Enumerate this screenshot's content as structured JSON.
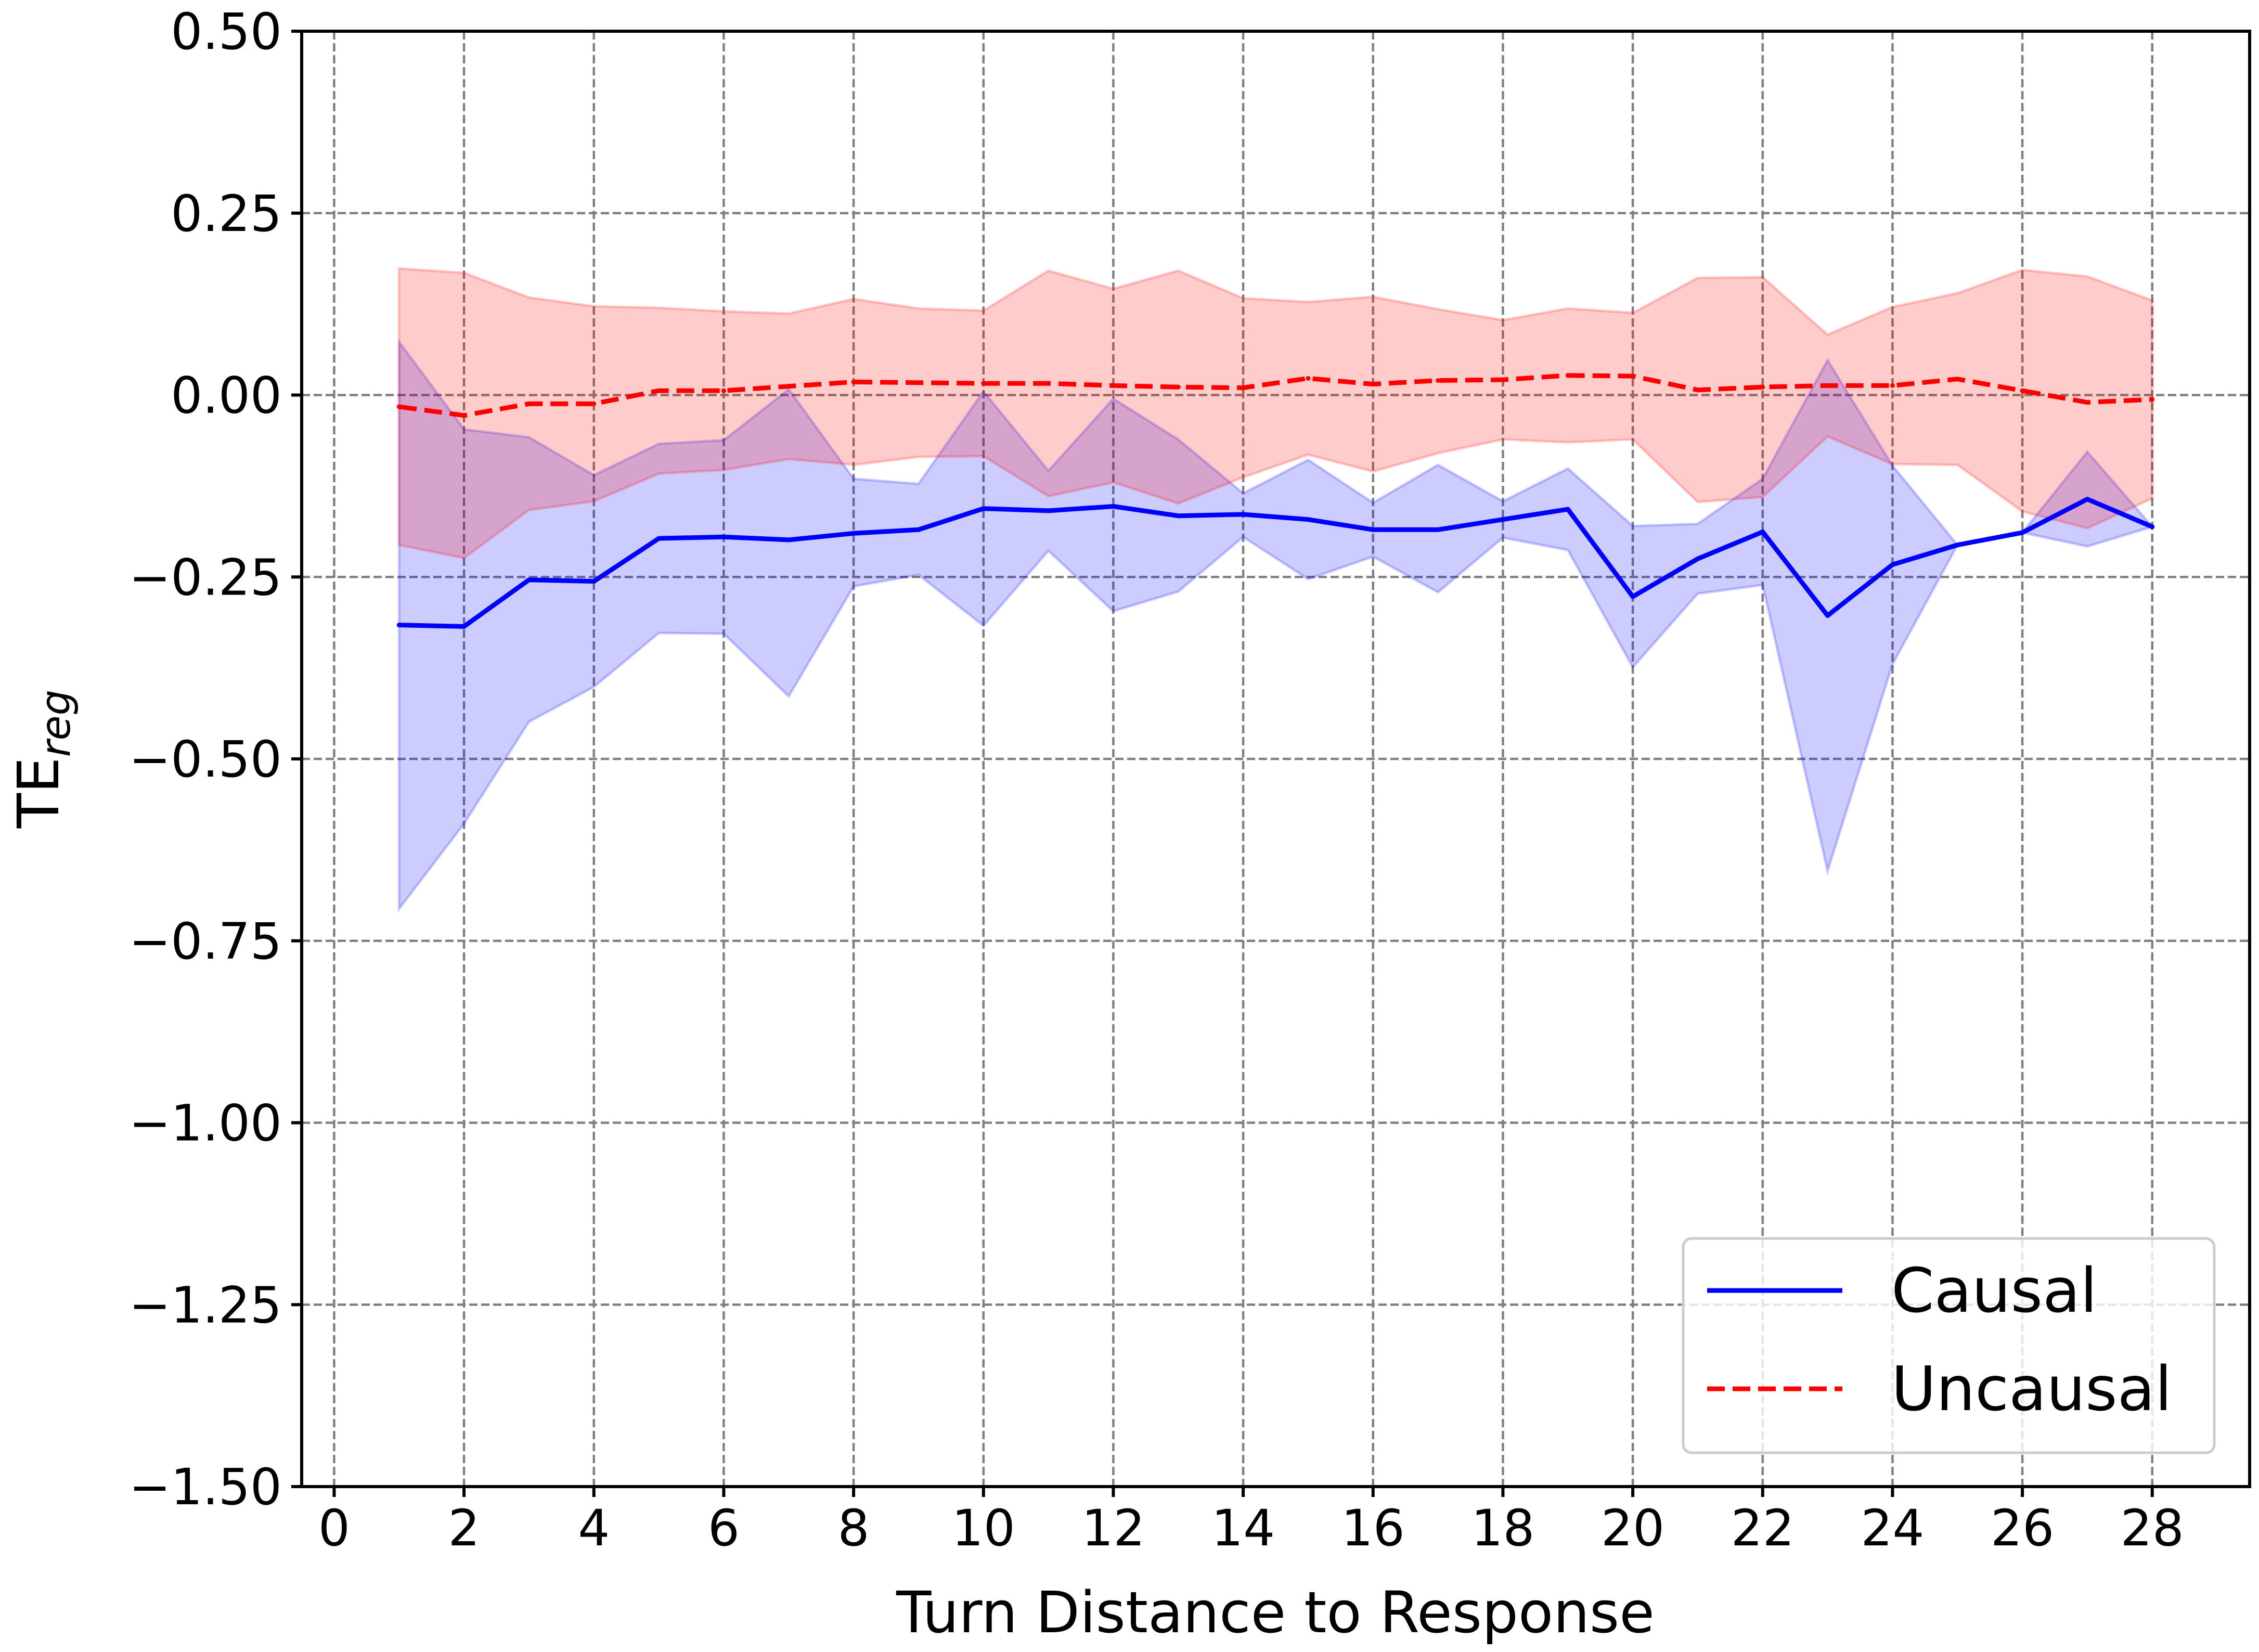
{
  "chart_data": {
    "type": "line",
    "xlabel": "Turn Distance to Response",
    "ylabel_main": "TE",
    "ylabel_sub": "reg",
    "xlim": [
      -0.5,
      29.5
    ],
    "ylim": [
      -1.5,
      0.5
    ],
    "xticks": [
      0,
      2,
      4,
      6,
      8,
      10,
      12,
      14,
      16,
      18,
      20,
      22,
      24,
      26,
      28
    ],
    "yticks": [
      0.5,
      0.25,
      0.0,
      -0.25,
      -0.5,
      -0.75,
      -1.0,
      -1.25,
      -1.5
    ],
    "ytick_labels": [
      "0.50",
      "0.25",
      "0.00",
      "−0.25",
      "−0.50",
      "−0.75",
      "−1.00",
      "−1.25",
      "−1.50"
    ],
    "grid": true,
    "legend_position": "bottom-right",
    "x": [
      1,
      2,
      3,
      4,
      5,
      6,
      7,
      8,
      9,
      10,
      11,
      12,
      13,
      14,
      15,
      16,
      17,
      18,
      19,
      20,
      21,
      22,
      23,
      24,
      25,
      26,
      27,
      28
    ],
    "series": [
      {
        "name": "Causal",
        "color": "#0000ff",
        "line_style": "solid",
        "band_color": "#0000ff",
        "values": [
          -0.316,
          -0.318,
          -0.254,
          -0.256,
          -0.197,
          -0.195,
          -0.199,
          -0.19,
          -0.185,
          -0.156,
          -0.159,
          -0.153,
          -0.166,
          -0.164,
          -0.171,
          -0.185,
          -0.185,
          -0.171,
          -0.157,
          -0.277,
          -0.225,
          -0.188,
          -0.303,
          -0.233,
          -0.206,
          -0.189,
          -0.143,
          -0.181
        ],
        "upper": [
          0.073,
          -0.047,
          -0.058,
          -0.11,
          -0.067,
          -0.062,
          0.008,
          -0.115,
          -0.122,
          0.005,
          -0.104,
          -0.005,
          -0.061,
          -0.135,
          -0.089,
          -0.148,
          -0.096,
          -0.146,
          -0.101,
          -0.18,
          -0.177,
          -0.115,
          0.048,
          -0.097,
          -0.206,
          -0.189,
          -0.078,
          -0.181
        ],
        "lower": [
          -0.706,
          -0.589,
          -0.449,
          -0.401,
          -0.327,
          -0.328,
          -0.414,
          -0.263,
          -0.247,
          -0.317,
          -0.214,
          -0.297,
          -0.27,
          -0.195,
          -0.253,
          -0.222,
          -0.271,
          -0.196,
          -0.213,
          -0.374,
          -0.273,
          -0.261,
          -0.654,
          -0.37,
          -0.206,
          -0.189,
          -0.208,
          -0.181
        ]
      },
      {
        "name": "Uncausal",
        "color": "#ff0000",
        "line_style": "dashed",
        "band_color": "#ff0000",
        "values": [
          -0.016,
          -0.028,
          -0.012,
          -0.012,
          0.006,
          0.006,
          0.012,
          0.018,
          0.017,
          0.016,
          0.016,
          0.013,
          0.011,
          0.01,
          0.023,
          0.015,
          0.02,
          0.021,
          0.027,
          0.026,
          0.007,
          0.011,
          0.013,
          0.013,
          0.022,
          0.006,
          -0.01,
          -0.006
        ],
        "upper": [
          0.174,
          0.168,
          0.134,
          0.122,
          0.12,
          0.115,
          0.112,
          0.132,
          0.119,
          0.116,
          0.171,
          0.146,
          0.171,
          0.133,
          0.128,
          0.135,
          0.118,
          0.103,
          0.119,
          0.113,
          0.161,
          0.162,
          0.083,
          0.121,
          0.14,
          0.172,
          0.163,
          0.13
        ],
        "lower": [
          -0.206,
          -0.224,
          -0.158,
          -0.146,
          -0.108,
          -0.103,
          -0.088,
          -0.096,
          -0.085,
          -0.084,
          -0.139,
          -0.12,
          -0.149,
          -0.113,
          -0.082,
          -0.105,
          -0.08,
          -0.061,
          -0.065,
          -0.061,
          -0.147,
          -0.14,
          -0.057,
          -0.095,
          -0.096,
          -0.16,
          -0.183,
          -0.142
        ]
      }
    ]
  }
}
